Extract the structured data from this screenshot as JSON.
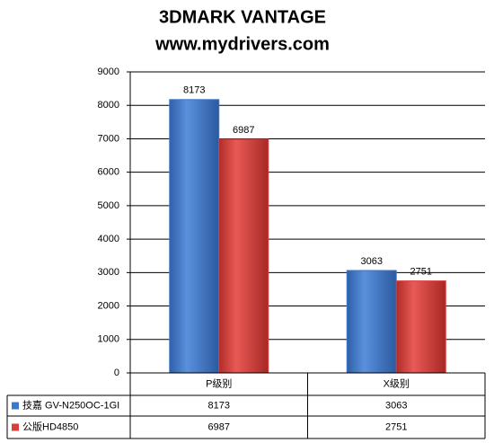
{
  "chart_data": {
    "type": "bar",
    "title": "3DMARK VANTAGE",
    "subtitle": "www.mydrivers.com",
    "categories": [
      "P级别",
      "X级别"
    ],
    "series": [
      {
        "name": "技嘉 GV-N250OC-1GI",
        "color": "#3f78c8",
        "values": [
          8173,
          3063
        ]
      },
      {
        "name": "公版HD4850",
        "color": "#d8403c",
        "values": [
          6987,
          2751
        ]
      }
    ],
    "ylim": [
      0,
      9000
    ],
    "yticks": [
      0,
      1000,
      2000,
      3000,
      4000,
      5000,
      6000,
      7000,
      8000,
      9000
    ],
    "grid": true,
    "data_table": true
  }
}
